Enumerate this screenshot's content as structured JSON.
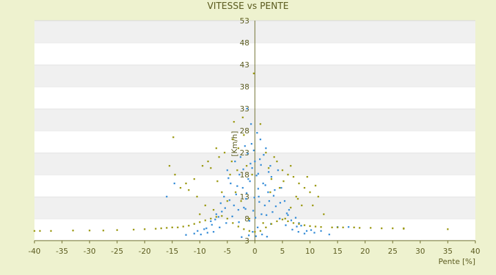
{
  "chart_data": {
    "type": "scatter",
    "title": "VITESSE vs PENTE",
    "xlabel": "Pente [%]",
    "ylabel": "[Km/h]",
    "xlim": [
      -40,
      40
    ],
    "ylim": [
      3,
      53
    ],
    "x_ticks": [
      "-40",
      "-35",
      "-30",
      "-25",
      "-20",
      "-15",
      "-10",
      "-5",
      "0",
      "5",
      "10",
      "15",
      "20",
      "25",
      "30",
      "35",
      "40"
    ],
    "y_ticks": [
      "3",
      "8",
      "13",
      "18",
      "23",
      "28",
      "33",
      "38",
      "43",
      "48",
      "53"
    ],
    "grid": "horizontal bands",
    "legend": "none",
    "series": [
      {
        "color": "#3a8fd8",
        "points": [
          [
            0.0,
            21.0
          ],
          [
            -0.5,
            19.5
          ],
          [
            0.6,
            18.2
          ],
          [
            -1.2,
            17.0
          ],
          [
            1.5,
            16.0
          ],
          [
            -2.2,
            15.0
          ],
          [
            2.4,
            14.0
          ],
          [
            -0.8,
            20.5
          ],
          [
            0.9,
            21.5
          ],
          [
            -1.6,
            12.5
          ],
          [
            1.8,
            11.0
          ],
          [
            -3.0,
            10.0
          ],
          [
            3.2,
            9.5
          ],
          [
            -4.1,
            8.5
          ],
          [
            4.5,
            8.0
          ],
          [
            -5.2,
            7.0
          ],
          [
            5.6,
            6.5
          ],
          [
            -6.4,
            6.0
          ],
          [
            6.8,
            5.5
          ],
          [
            -7.5,
            5.0
          ],
          [
            7.9,
            5.0
          ],
          [
            -8.6,
            4.8
          ],
          [
            9.0,
            4.6
          ],
          [
            -9.8,
            4.4
          ],
          [
            0.2,
            4.0
          ],
          [
            -0.4,
            5.0
          ],
          [
            0.5,
            6.0
          ],
          [
            -1.0,
            7.5
          ],
          [
            1.2,
            9.0
          ],
          [
            -2.0,
            10.5
          ],
          [
            2.6,
            12.0
          ],
          [
            -3.4,
            13.5
          ],
          [
            3.6,
            14.5
          ],
          [
            -4.4,
            16.0
          ],
          [
            4.8,
            15.0
          ],
          [
            -5.6,
            13.0
          ],
          [
            5.4,
            12.0
          ],
          [
            -6.2,
            11.5
          ],
          [
            6.2,
            10.0
          ],
          [
            -7.0,
            9.0
          ],
          [
            7.4,
            8.2
          ],
          [
            -8.0,
            7.4
          ],
          [
            8.4,
            6.4
          ],
          [
            -9.2,
            5.6
          ],
          [
            10.2,
            5.4
          ],
          [
            12.0,
            5.2
          ],
          [
            13.5,
            4.4
          ],
          [
            -11.0,
            4.6
          ],
          [
            -12.5,
            4.3
          ],
          [
            -14.6,
            16.0
          ],
          [
            -16.0,
            13.0
          ],
          [
            15.0,
            6.1
          ],
          [
            17.0,
            6.1
          ],
          [
            -1.4,
            33.0
          ],
          [
            1.0,
            26.0
          ],
          [
            -0.6,
            25.0
          ],
          [
            -2.6,
            22.0
          ],
          [
            2.0,
            24.0
          ],
          [
            -3.6,
            21.0
          ],
          [
            -0.2,
            23.5
          ],
          [
            0.4,
            27.5
          ],
          [
            -1.8,
            24.5
          ],
          [
            1.6,
            22.5
          ],
          [
            -0.9,
            16.5
          ],
          [
            0.7,
            13.0
          ],
          [
            -2.8,
            18.0
          ],
          [
            3.0,
            17.5
          ],
          [
            -4.8,
            17.2
          ],
          [
            4.2,
            19.0
          ],
          [
            -5.0,
            19.0
          ],
          [
            2.8,
            20.0
          ],
          [
            -3.8,
            11.0
          ],
          [
            3.8,
            10.8
          ],
          [
            -6.0,
            9.6
          ],
          [
            6.0,
            8.8
          ],
          [
            -7.2,
            7.8
          ],
          [
            8.0,
            7.0
          ],
          [
            -1.1,
            4.2
          ],
          [
            1.3,
            4.4
          ],
          [
            -2.4,
            3.8
          ],
          [
            2.2,
            3.9
          ],
          [
            0.1,
            8.2
          ],
          [
            -0.3,
            9.8
          ],
          [
            0.8,
            11.8
          ],
          [
            -1.5,
            13.8
          ],
          [
            1.9,
            15.6
          ],
          [
            -2.1,
            19.2
          ],
          [
            2.5,
            18.6
          ],
          [
            -0.7,
            29.5
          ],
          [
            0.3,
            17.8
          ],
          [
            -1.3,
            22.8
          ],
          [
            1.1,
            20.2
          ],
          [
            -3.2,
            15.4
          ],
          [
            3.4,
            13.2
          ],
          [
            -4.6,
            12.2
          ],
          [
            4.6,
            11.6
          ],
          [
            -5.4,
            10.4
          ],
          [
            5.8,
            9.2
          ],
          [
            -6.6,
            8.4
          ],
          [
            6.6,
            7.6
          ],
          [
            -7.8,
            6.6
          ],
          [
            7.6,
            6.2
          ],
          [
            -8.8,
            5.8
          ],
          [
            9.4,
            5.2
          ],
          [
            -10.4,
            5.2
          ],
          [
            10.8,
            4.8
          ],
          [
            -0.1,
            12.8
          ],
          [
            0.6,
            14.8
          ],
          [
            -1.7,
            10.2
          ],
          [
            2.1,
            8.8
          ],
          [
            -2.9,
            7.2
          ],
          [
            2.9,
            6.8
          ]
        ]
      },
      {
        "color": "#9c9a14",
        "points": [
          [
            -2.0,
            27.0
          ],
          [
            2.0,
            23.0
          ],
          [
            -4.0,
            26.0
          ],
          [
            -5.5,
            23.0
          ],
          [
            -6.5,
            22.0
          ],
          [
            -8.0,
            19.5
          ],
          [
            -9.5,
            20.0
          ],
          [
            -11.0,
            17.0
          ],
          [
            -12.5,
            16.0
          ],
          [
            -13.5,
            15.0
          ],
          [
            -14.5,
            18.0
          ],
          [
            -15.5,
            20.0
          ],
          [
            -14.8,
            26.5
          ],
          [
            -10.5,
            13.0
          ],
          [
            -9.0,
            11.0
          ],
          [
            -7.5,
            10.0
          ],
          [
            -6.0,
            14.0
          ],
          [
            -4.5,
            18.0
          ],
          [
            -3.0,
            24.0
          ],
          [
            4.0,
            21.0
          ],
          [
            5.0,
            19.0
          ],
          [
            6.0,
            18.0
          ],
          [
            7.0,
            17.5
          ],
          [
            8.0,
            16.0
          ],
          [
            9.0,
            15.0
          ],
          [
            10.0,
            14.0
          ],
          [
            11.0,
            15.5
          ],
          [
            11.5,
            13.0
          ],
          [
            7.5,
            13.0
          ],
          [
            8.5,
            11.0
          ],
          [
            6.5,
            10.5
          ],
          [
            5.5,
            8.0
          ],
          [
            3.0,
            17.0
          ],
          [
            2.5,
            19.5
          ],
          [
            -1.5,
            20.0
          ],
          [
            -0.5,
            18.0
          ],
          [
            -3.5,
            14.0
          ],
          [
            -2.5,
            12.0
          ],
          [
            -1.0,
            8.0
          ],
          [
            1.5,
            7.0
          ],
          [
            -40.0,
            5.2
          ],
          [
            -39.0,
            5.2
          ],
          [
            -37.0,
            5.2
          ],
          [
            -33.0,
            5.3
          ],
          [
            -30.0,
            5.3
          ],
          [
            -27.5,
            5.3
          ],
          [
            -25.0,
            5.4
          ],
          [
            -22.0,
            5.5
          ],
          [
            -20.0,
            5.6
          ],
          [
            -18.0,
            5.7
          ],
          [
            -17.0,
            5.8
          ],
          [
            -16.0,
            5.9
          ],
          [
            -15.0,
            6.0
          ],
          [
            -14.0,
            6.0
          ],
          [
            -13.0,
            6.2
          ],
          [
            -12.0,
            6.4
          ],
          [
            -11.0,
            6.8
          ],
          [
            -10.0,
            7.2
          ],
          [
            -9.0,
            7.6
          ],
          [
            -8.0,
            8.0
          ],
          [
            -7.0,
            8.4
          ],
          [
            -6.0,
            8.6
          ],
          [
            -5.0,
            8.0
          ],
          [
            -4.0,
            7.0
          ],
          [
            -3.0,
            6.2
          ],
          [
            -2.0,
            5.6
          ],
          [
            -1.0,
            5.2
          ],
          [
            0.0,
            5.0
          ],
          [
            1.0,
            5.2
          ],
          [
            2.0,
            6.0
          ],
          [
            3.0,
            6.8
          ],
          [
            4.0,
            7.4
          ],
          [
            5.0,
            7.8
          ],
          [
            6.0,
            7.4
          ],
          [
            7.0,
            7.0
          ],
          [
            8.0,
            6.8
          ],
          [
            9.0,
            6.5
          ],
          [
            10.0,
            6.3
          ],
          [
            11.0,
            6.2
          ],
          [
            12.0,
            6.1
          ],
          [
            14.0,
            6.0
          ],
          [
            15.0,
            6.0
          ],
          [
            16.0,
            6.0
          ],
          [
            18.0,
            6.0
          ],
          [
            19.0,
            5.9
          ],
          [
            21.0,
            5.9
          ],
          [
            23.0,
            5.8
          ],
          [
            25.0,
            5.8
          ],
          [
            27.0,
            5.7
          ],
          [
            27.0,
            5.8
          ],
          [
            35.0,
            5.6
          ],
          [
            -8.5,
            21.0
          ],
          [
            -7.0,
            24.0
          ],
          [
            -3.8,
            30.0
          ],
          [
            -2.2,
            31.0
          ],
          [
            1.0,
            29.5
          ],
          [
            3.5,
            22.0
          ],
          [
            6.5,
            20.0
          ],
          [
            9.5,
            17.5
          ],
          [
            -12.0,
            14.5
          ],
          [
            -10.0,
            9.0
          ],
          [
            -5.0,
            12.0
          ],
          [
            4.5,
            15.0
          ],
          [
            10.5,
            11.0
          ],
          [
            -0.2,
            41.0
          ],
          [
            12.5,
            9.0
          ],
          [
            -6.8,
            16.5
          ],
          [
            7.8,
            12.5
          ],
          [
            2.8,
            14.0
          ],
          [
            -3.2,
            19.0
          ],
          [
            -4.2,
            21.0
          ],
          [
            5.2,
            16.5
          ]
        ]
      }
    ]
  }
}
